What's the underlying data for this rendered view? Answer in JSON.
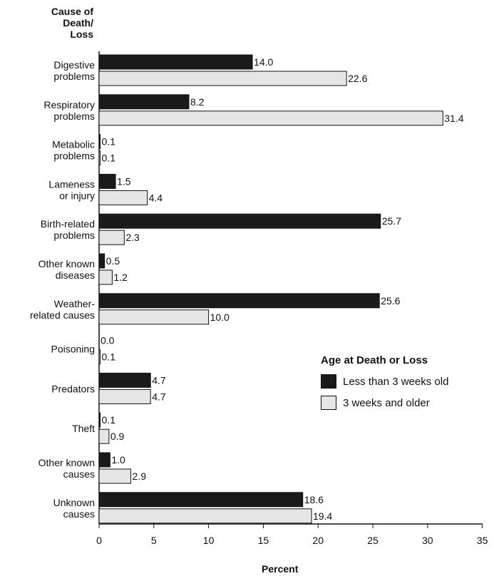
{
  "chart_data": {
    "type": "bar",
    "orientation": "horizontal",
    "ytitle": "Cause of\nDeath/\nLoss",
    "xlabel": "Percent",
    "categories": [
      "Digestive\nproblems",
      "Respiratory\nproblems",
      "Metabolic\nproblems",
      "Lameness\nor injury",
      "Birth-related\nproblems",
      "Other known\ndiseases",
      "Weather-\nrelated causes",
      "Poisoning",
      "Predators",
      "Theft",
      "Other known\ncauses",
      "Unknown\ncauses"
    ],
    "series": [
      {
        "name": "Less than 3 weeks old",
        "color": "#1a1a1a",
        "values": [
          14.0,
          8.2,
          0.1,
          1.5,
          25.7,
          0.5,
          25.6,
          0.0,
          4.7,
          0.1,
          1.0,
          18.6
        ],
        "labels": [
          "14.0",
          "8.2",
          "0.1",
          "1.5",
          "25.7",
          "0.5",
          "25.6",
          "0.0",
          "4.7",
          "0.1",
          "1.0",
          "18.6"
        ]
      },
      {
        "name": "3 weeks and older",
        "color": "#e6e6e6",
        "values": [
          22.6,
          31.4,
          0.1,
          4.4,
          2.3,
          1.2,
          10.0,
          0.1,
          4.7,
          0.9,
          2.9,
          19.4
        ],
        "labels": [
          "22.6",
          "31.4",
          "0.1",
          "4.4",
          "2.3",
          "1.2",
          "10.0",
          "0.1",
          "4.7",
          "0.9",
          "2.9",
          "19.4"
        ]
      }
    ],
    "xlim": [
      0,
      35
    ],
    "xticks": [
      "0",
      "5",
      "10",
      "15",
      "20",
      "25",
      "30",
      "35"
    ],
    "legend_title": "Age at Death or Loss",
    "legend_position": "right",
    "grid": false
  }
}
